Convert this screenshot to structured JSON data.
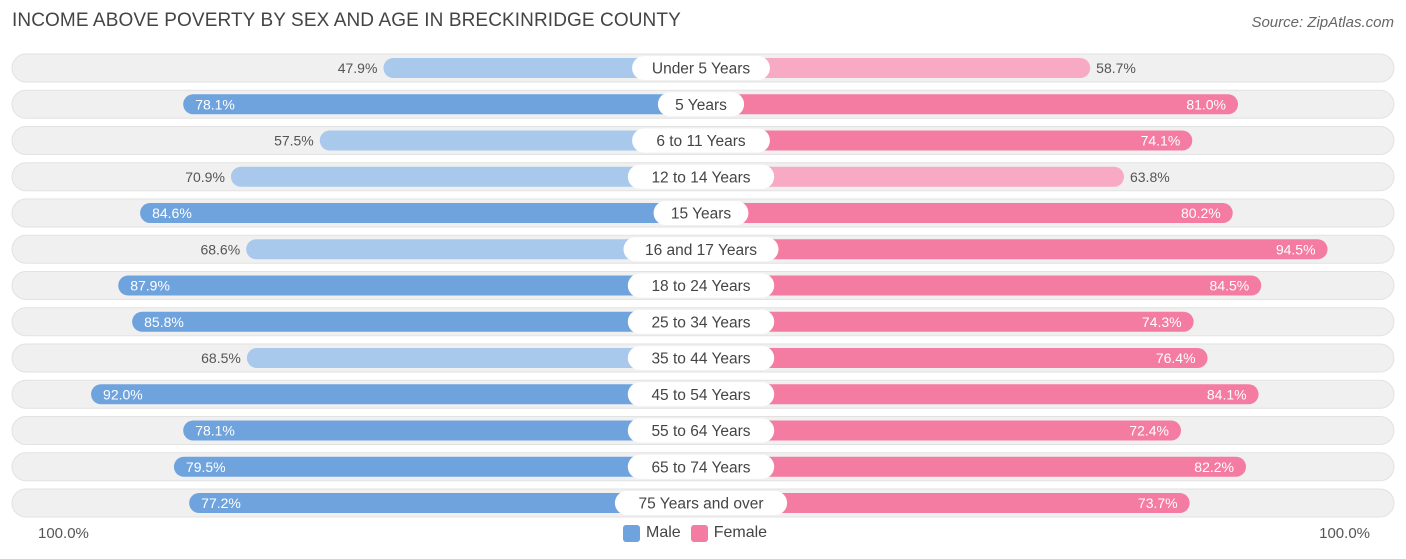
{
  "title": "INCOME ABOVE POVERTY BY SEX AND AGE IN BRECKINRIDGE COUNTY",
  "source": "Source: ZipAtlas.com",
  "colors": {
    "male": "#6fa3dd",
    "male_light": "#a9c9ec",
    "female": "#f47ca3",
    "female_light": "#f8a9c3",
    "track": "#f0f0f0",
    "track_border": "#e2e2e2"
  },
  "chart_data": {
    "type": "bar",
    "orientation": "horizontal-diverging",
    "title": "INCOME ABOVE POVERTY BY SEX AND AGE IN BRECKINRIDGE COUNTY",
    "categories": [
      "Under 5 Years",
      "5 Years",
      "6 to 11 Years",
      "12 to 14 Years",
      "15 Years",
      "16 and 17 Years",
      "18 to 24 Years",
      "25 to 34 Years",
      "35 to 44 Years",
      "45 to 54 Years",
      "55 to 64 Years",
      "65 to 74 Years",
      "75 Years and over"
    ],
    "series": [
      {
        "name": "Male",
        "values": [
          47.9,
          78.1,
          57.5,
          70.9,
          84.6,
          68.6,
          87.9,
          85.8,
          68.5,
          92.0,
          78.1,
          79.5,
          77.2
        ],
        "labels": [
          "47.9%",
          "78.1%",
          "57.5%",
          "70.9%",
          "84.6%",
          "68.6%",
          "87.9%",
          "85.8%",
          "68.5%",
          "92.0%",
          "78.1%",
          "79.5%",
          "77.2%"
        ]
      },
      {
        "name": "Female",
        "values": [
          58.7,
          81.0,
          74.1,
          63.8,
          80.2,
          94.5,
          84.5,
          74.3,
          76.4,
          84.1,
          72.4,
          82.2,
          73.7
        ],
        "labels": [
          "58.7%",
          "81.0%",
          "74.1%",
          "63.8%",
          "80.2%",
          "94.5%",
          "84.5%",
          "74.3%",
          "76.4%",
          "84.1%",
          "72.4%",
          "82.2%",
          "73.7%"
        ]
      }
    ],
    "xlim": [
      0,
      100
    ],
    "axis_left_label": "100.0%",
    "axis_right_label": "100.0%",
    "legend": [
      "Male",
      "Female"
    ],
    "legend_position": "bottom-center"
  }
}
